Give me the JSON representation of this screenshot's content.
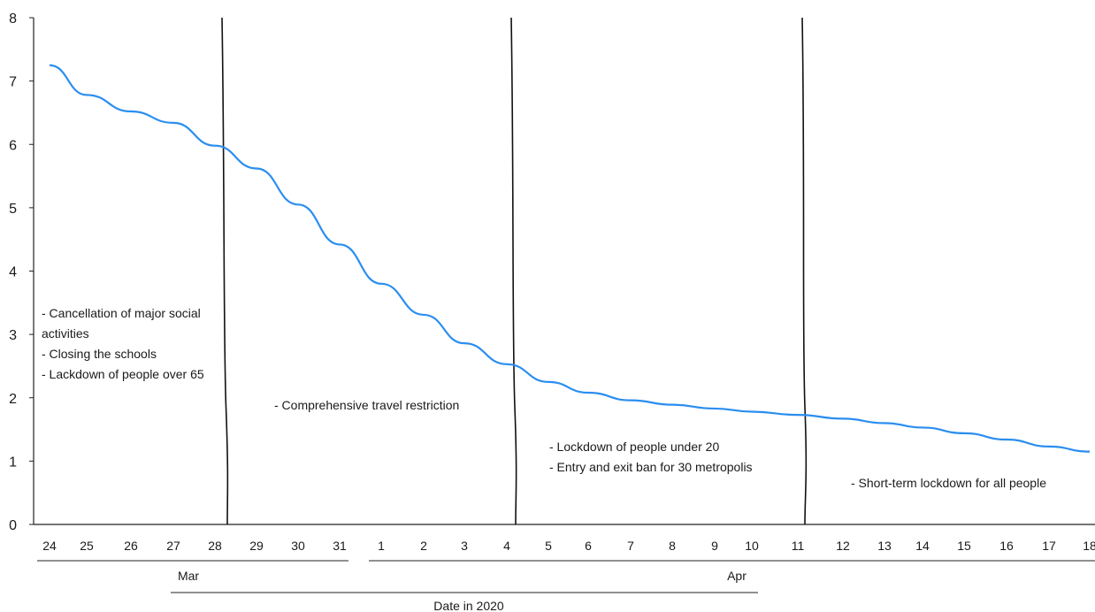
{
  "chart_data": {
    "type": "line",
    "title": "",
    "xlabel": "Date in 2020",
    "ylabel": "",
    "ylim": [
      0,
      8
    ],
    "yticks": [
      "0",
      "1",
      "2",
      "3",
      "4",
      "5",
      "6",
      "7",
      "8"
    ],
    "categories": [
      "24",
      "25",
      "26",
      "27",
      "28",
      "29",
      "30",
      "31",
      "1",
      "2",
      "3",
      "4",
      "5",
      "6",
      "7",
      "8",
      "9",
      "10",
      "11",
      "12",
      "13",
      "14",
      "15",
      "16",
      "17",
      "18"
    ],
    "month_groups": [
      {
        "label": "Mar",
        "from": "24",
        "to": "31"
      },
      {
        "label": "Apr",
        "from": "1",
        "to": "18"
      }
    ],
    "series": [
      {
        "color": "#2a8ef0",
        "x": [
          "24",
          "25",
          "26",
          "27",
          "28",
          "29",
          "30",
          "31",
          "1",
          "2",
          "3",
          "4",
          "5",
          "6",
          "7",
          "8",
          "9",
          "10",
          "11",
          "12",
          "13",
          "14",
          "15",
          "16",
          "17",
          "18"
        ],
        "values": [
          7.25,
          6.78,
          6.52,
          6.34,
          5.98,
          5.62,
          5.05,
          4.42,
          3.8,
          3.31,
          2.86,
          2.53,
          2.25,
          2.08,
          1.96,
          1.89,
          1.83,
          1.78,
          1.73,
          1.67,
          1.6,
          1.53,
          1.44,
          1.34,
          1.23,
          1.15
        ]
      }
    ],
    "intervention_lines_at": [
      "28",
      "4",
      "11"
    ],
    "annotations": [
      {
        "region": 1,
        "items": [
          "- Cancellation of major social",
          "  activities",
          "- Closing the schools",
          "- Lackdown of people over 65"
        ]
      },
      {
        "region": 2,
        "items": [
          "- Comprehensive travel restriction"
        ]
      },
      {
        "region": 3,
        "items": [
          "- Lockdown of people under 20",
          "- Entry and exit ban for 30 metropolis"
        ]
      },
      {
        "region": 4,
        "items": [
          "- Short-term lockdown for all people"
        ]
      }
    ],
    "grid": false,
    "legend": "none"
  }
}
